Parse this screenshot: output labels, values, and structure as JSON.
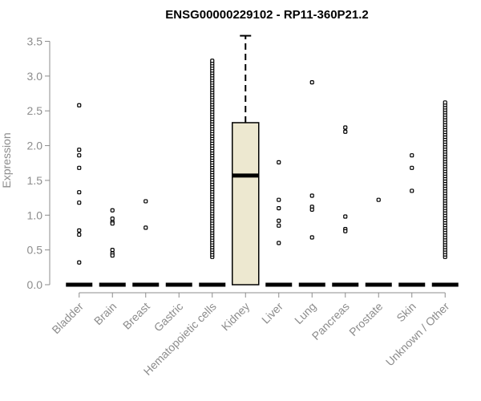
{
  "chart_data": {
    "type": "boxplot",
    "title": "ENSG00000229102 - RP11-360P21.2",
    "ylabel": "Expression",
    "xlabel": "",
    "ylim": [
      0,
      3.5
    ],
    "yticks": [
      "0.0",
      "0.5",
      "1.0",
      "1.5",
      "2.0",
      "2.5",
      "3.0",
      "3.5"
    ],
    "box_fill": "#ede8d0",
    "categories": [
      "Bladder",
      "Brain",
      "Breast",
      "Gastric",
      "Hematopoietic cells",
      "Kidney",
      "Liver",
      "Lung",
      "Pancreas",
      "Prostate",
      "Skin",
      "Unknown / Other"
    ],
    "boxes": [
      {
        "category": "Bladder",
        "q1": 0,
        "median": 0,
        "q3": 0,
        "whisker_low": 0,
        "whisker_high": 0,
        "outliers": [
          2.58,
          1.94,
          1.86,
          1.68,
          1.33,
          1.18,
          0.78,
          0.72,
          0.32
        ]
      },
      {
        "category": "Brain",
        "q1": 0,
        "median": 0,
        "q3": 0,
        "whisker_low": 0,
        "whisker_high": 0,
        "outliers": [
          1.07,
          0.95,
          0.9,
          0.88,
          0.5,
          0.45,
          0.42
        ]
      },
      {
        "category": "Breast",
        "q1": 0,
        "median": 0,
        "q3": 0,
        "whisker_low": 0,
        "whisker_high": 0,
        "outliers": [
          1.2,
          0.82
        ]
      },
      {
        "category": "Gastric",
        "q1": 0,
        "median": 0,
        "q3": 0,
        "whisker_low": 0,
        "whisker_high": 0,
        "outliers": []
      },
      {
        "category": "Hematopoietic cells",
        "q1": 0,
        "median": 0,
        "q3": 0,
        "whisker_low": 0,
        "whisker_high": 0,
        "outliers_range": [
          0.4,
          3.22
        ]
      },
      {
        "category": "Kidney",
        "q1": 0,
        "median": 1.57,
        "q3": 2.33,
        "whisker_low": 0,
        "whisker_high": 3.58,
        "outliers": []
      },
      {
        "category": "Liver",
        "q1": 0,
        "median": 0,
        "q3": 0,
        "whisker_low": 0,
        "whisker_high": 0,
        "outliers": [
          1.76,
          1.22,
          1.1,
          0.92,
          0.85,
          0.6
        ]
      },
      {
        "category": "Lung",
        "q1": 0,
        "median": 0,
        "q3": 0,
        "whisker_low": 0,
        "whisker_high": 0,
        "outliers": [
          2.91,
          1.28,
          1.12,
          1.08,
          0.68
        ]
      },
      {
        "category": "Pancreas",
        "q1": 0,
        "median": 0,
        "q3": 0,
        "whisker_low": 0,
        "whisker_high": 0,
        "outliers": [
          2.26,
          2.2,
          0.98,
          0.8,
          0.77
        ]
      },
      {
        "category": "Prostate",
        "q1": 0,
        "median": 0,
        "q3": 0,
        "whisker_low": 0,
        "whisker_high": 0,
        "outliers": [
          1.22
        ]
      },
      {
        "category": "Skin",
        "q1": 0,
        "median": 0,
        "q3": 0,
        "whisker_low": 0,
        "whisker_high": 0,
        "outliers": [
          1.86,
          1.68,
          1.35
        ]
      },
      {
        "category": "Unknown / Other",
        "q1": 0,
        "median": 0,
        "q3": 0,
        "whisker_low": 0,
        "whisker_high": 0,
        "outliers_range": [
          0.4,
          2.62
        ]
      }
    ]
  }
}
